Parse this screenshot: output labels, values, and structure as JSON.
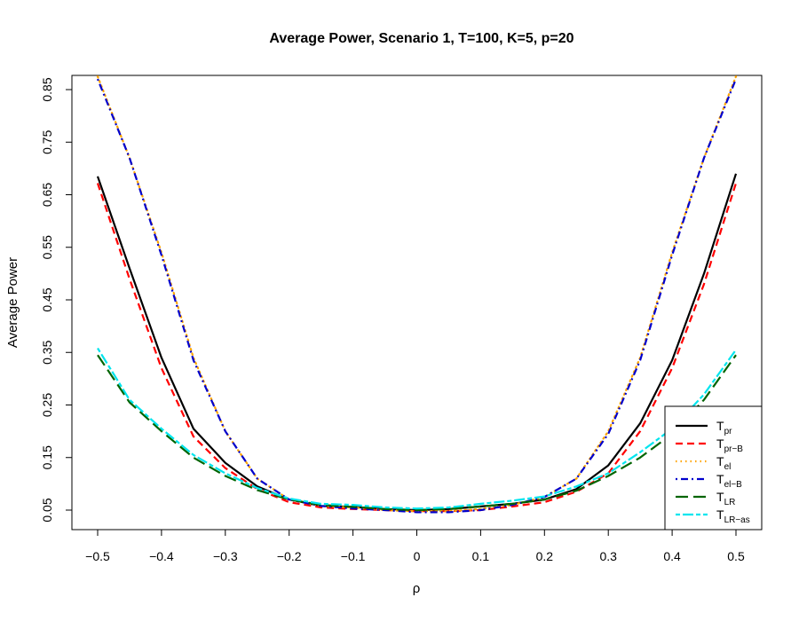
{
  "chart_data": {
    "type": "line",
    "title": "Average Power, Scenario 1, T=100, K=5, p=20",
    "xlabel": "ρ",
    "ylabel": "Average Power",
    "xlim": [
      -0.5,
      0.5
    ],
    "ylim": [
      0.05,
      0.85
    ],
    "x_ticks": [
      "−0.5",
      "−0.4",
      "−0.3",
      "−0.2",
      "−0.1",
      "0",
      "0.1",
      "0.2",
      "0.3",
      "0.4",
      "0.5"
    ],
    "x_tick_values": [
      -0.5,
      -0.4,
      -0.3,
      -0.2,
      -0.1,
      0,
      0.1,
      0.2,
      0.3,
      0.4,
      0.5
    ],
    "y_ticks": [
      "0.05",
      "0.15",
      "0.25",
      "0.35",
      "0.45",
      "0.55",
      "0.65",
      "0.75",
      "0.85"
    ],
    "y_tick_values": [
      0.05,
      0.15,
      0.25,
      0.35,
      0.45,
      0.55,
      0.65,
      0.75,
      0.85
    ],
    "legend_position": "bottom-right",
    "grid": false,
    "x": [
      -0.5,
      -0.45,
      -0.4,
      -0.35,
      -0.3,
      -0.25,
      -0.2,
      -0.15,
      -0.1,
      -0.05,
      0,
      0.05,
      0.1,
      0.15,
      0.2,
      0.25,
      0.3,
      0.35,
      0.4,
      0.45,
      0.5
    ],
    "series": [
      {
        "name": "T",
        "sub": "pr",
        "color": "#000000",
        "dash": "solid",
        "values": [
          0.685,
          0.51,
          0.34,
          0.205,
          0.14,
          0.095,
          0.07,
          0.058,
          0.056,
          0.052,
          0.05,
          0.052,
          0.057,
          0.062,
          0.07,
          0.09,
          0.135,
          0.215,
          0.335,
          0.5,
          0.69
        ]
      },
      {
        "name": "T",
        "sub": "pr−B",
        "color": "#ff0000",
        "dash": "dashed",
        "values": [
          0.672,
          0.49,
          0.32,
          0.19,
          0.13,
          0.09,
          0.065,
          0.055,
          0.052,
          0.05,
          0.048,
          0.048,
          0.05,
          0.057,
          0.065,
          0.085,
          0.12,
          0.2,
          0.32,
          0.48,
          0.672
        ]
      },
      {
        "name": "T",
        "sub": "el",
        "color": "#ffa500",
        "dash": "dotted",
        "values": [
          0.875,
          0.72,
          0.54,
          0.34,
          0.2,
          0.11,
          0.07,
          0.058,
          0.055,
          0.05,
          0.048,
          0.048,
          0.052,
          0.06,
          0.075,
          0.11,
          0.2,
          0.34,
          0.54,
          0.72,
          0.875
        ]
      },
      {
        "name": "T",
        "sub": "el−B",
        "color": "#0000cd",
        "dash": "dashdot",
        "values": [
          0.87,
          0.72,
          0.535,
          0.335,
          0.2,
          0.11,
          0.07,
          0.058,
          0.053,
          0.05,
          0.046,
          0.046,
          0.05,
          0.06,
          0.075,
          0.11,
          0.195,
          0.335,
          0.535,
          0.72,
          0.87
        ]
      },
      {
        "name": "T",
        "sub": "LR",
        "color": "#006400",
        "dash": "longdash",
        "values": [
          0.345,
          0.255,
          0.2,
          0.15,
          0.115,
          0.088,
          0.07,
          0.06,
          0.056,
          0.052,
          0.05,
          0.052,
          0.057,
          0.062,
          0.07,
          0.087,
          0.115,
          0.15,
          0.195,
          0.26,
          0.345
        ]
      },
      {
        "name": "T",
        "sub": "LR−as",
        "color": "#00e5ee",
        "dash": "twodash",
        "values": [
          0.358,
          0.26,
          0.205,
          0.155,
          0.12,
          0.092,
          0.072,
          0.062,
          0.06,
          0.055,
          0.053,
          0.055,
          0.062,
          0.068,
          0.076,
          0.095,
          0.12,
          0.16,
          0.205,
          0.27,
          0.355
        ]
      }
    ]
  }
}
